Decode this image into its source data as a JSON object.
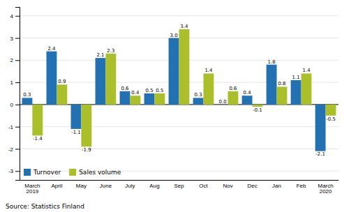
{
  "chart_data": {
    "type": "bar",
    "categories": [
      "March\n2019",
      "April",
      "May",
      "June",
      "July",
      "Aug",
      "Sep",
      "Oct",
      "Nov",
      "Dec",
      "Jan",
      "Feb",
      "March\n2020"
    ],
    "series": [
      {
        "name": "Turnover",
        "color": "#2271b3",
        "values": [
          0.3,
          2.4,
          -1.1,
          2.1,
          0.6,
          0.5,
          3.0,
          0.3,
          0.0,
          0.4,
          1.8,
          1.1,
          -2.1
        ],
        "value_labels": [
          "0.3",
          "2.4",
          "-1.1",
          "2.1",
          "0.6",
          "0.5",
          "3.0",
          "0.3",
          "0.0",
          "0.4",
          "1.8",
          "1.1",
          "-2.1"
        ]
      },
      {
        "name": "Sales volume",
        "color": "#aabf2a",
        "values": [
          -1.4,
          0.9,
          -1.9,
          2.3,
          0.4,
          0.5,
          3.4,
          1.4,
          0.6,
          -0.1,
          0.8,
          1.4,
          -0.5
        ],
        "value_labels": [
          "-1.4",
          "0.9",
          "-1.9",
          "2.3",
          "0.4",
          "0.5",
          "3.4",
          "1.4",
          "0.6",
          "-0.1",
          "0.8",
          "1.4",
          "-0.5"
        ]
      }
    ],
    "ylim": [
      -3.4,
      4.4
    ],
    "yticks": [
      -3,
      -2,
      -1,
      0,
      1,
      2,
      3,
      4
    ],
    "grid": true,
    "data_labels": true,
    "legend": "lower left",
    "source": "Source: Statistics Finland"
  }
}
